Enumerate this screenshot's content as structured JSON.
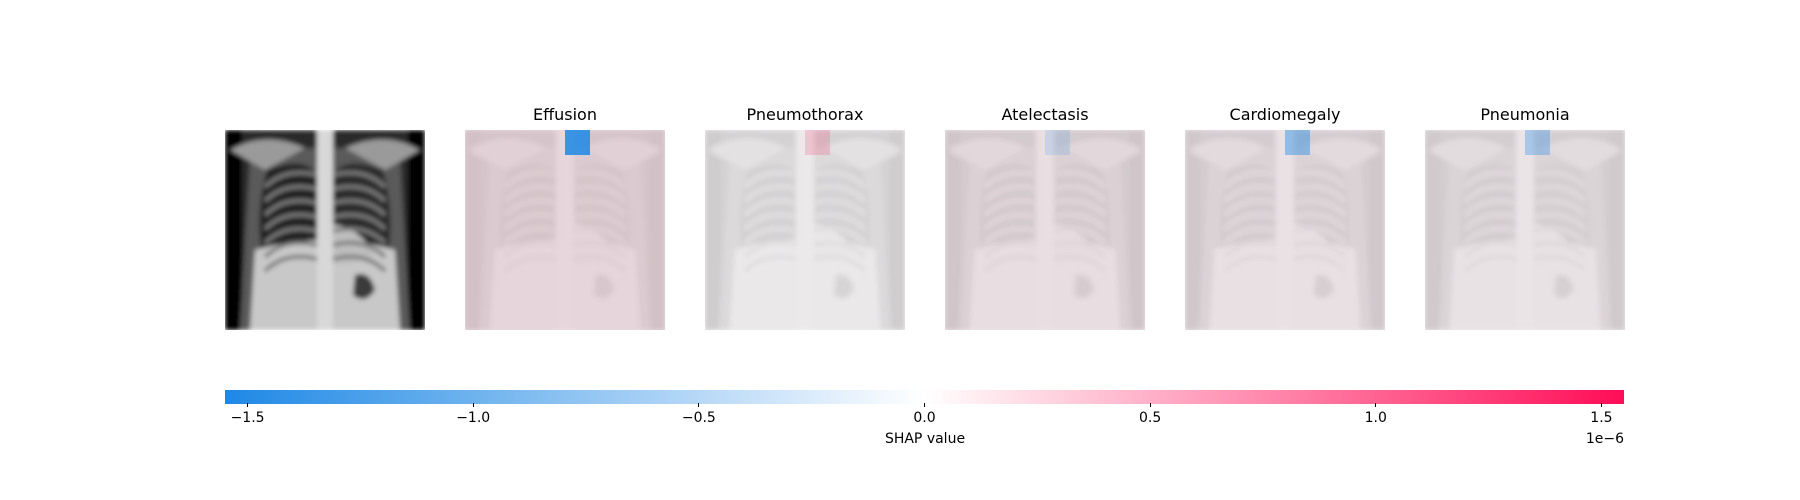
{
  "chart_data": {
    "type": "heatmap",
    "input_image": "chest-xray",
    "panels": [
      {
        "title": "Effusion",
        "background_tint": 0.08,
        "patch_value": -1.3
      },
      {
        "title": "Pneumothorax",
        "background_tint": 0.0,
        "patch_value": 0.08
      },
      {
        "title": "Atelectasis",
        "background_tint": 0.04,
        "patch_value": -0.05
      },
      {
        "title": "Cardiomegaly",
        "background_tint": 0.03,
        "patch_value": -0.55
      },
      {
        "title": "Pneumonia",
        "background_tint": 0.02,
        "patch_value": -0.35
      }
    ],
    "colorbar": {
      "label": "SHAP value",
      "offset_text": "1e−6",
      "range": [
        -1.55,
        1.55
      ],
      "ticks": [
        -1.5,
        -1.0,
        -0.5,
        0.0,
        0.5,
        1.0,
        1.5
      ],
      "tick_labels": [
        "−1.5",
        "−1.0",
        "−0.5",
        "0.0",
        "0.5",
        "1.0",
        "1.5"
      ],
      "colors": {
        "negative": "#1e88e5",
        "zero": "#ffffff",
        "positive": "#ff0d57"
      }
    }
  }
}
